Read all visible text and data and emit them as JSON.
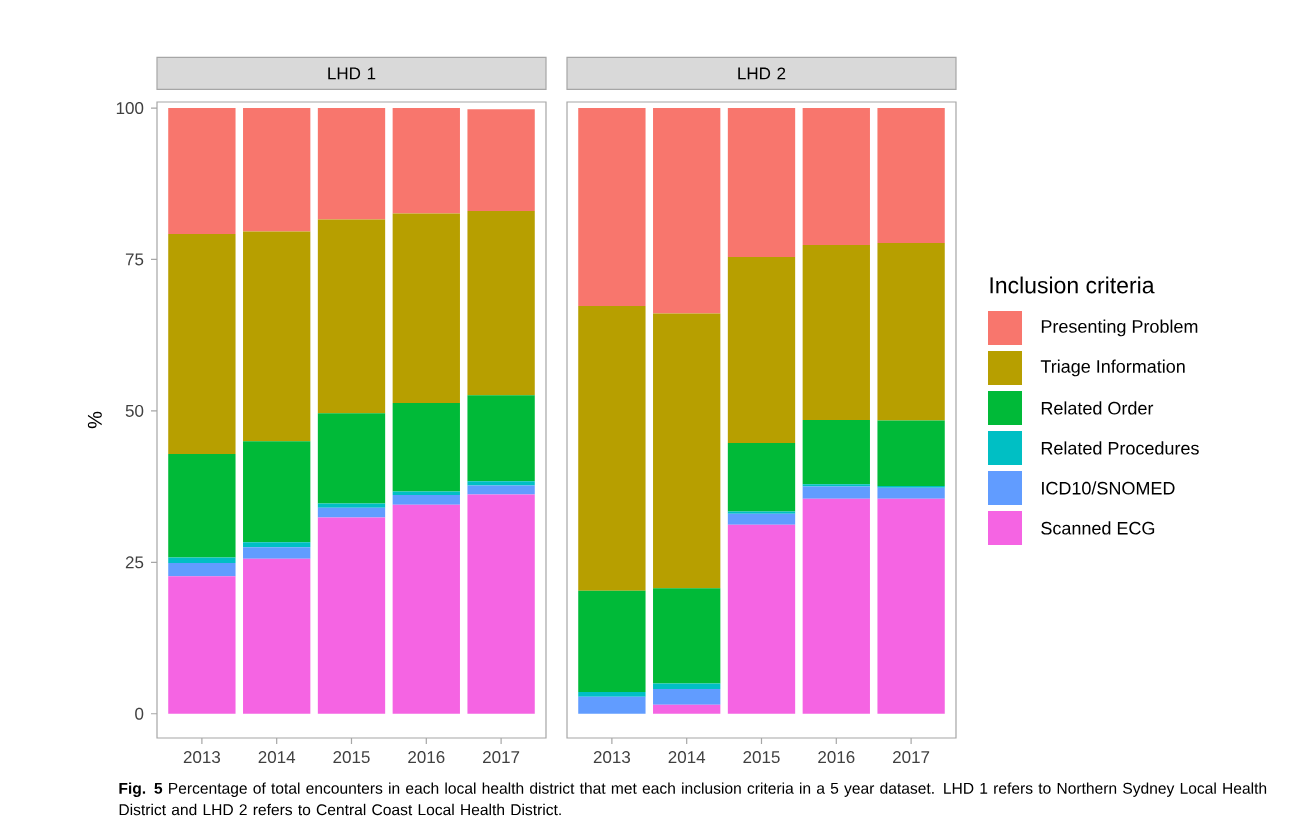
{
  "chart_data": [
    {
      "type": "bar",
      "stacked": true,
      "title": "LHD 1",
      "ylabel": "%",
      "legend": "right",
      "legend_title": "Inclusion criteria",
      "categories": [
        "2013",
        "2014",
        "2015",
        "2016",
        "2017"
      ],
      "series": [
        {
          "name": "Scanned ECG",
          "color": "#f564e3",
          "values": [
            22.7,
            25.6,
            32.4,
            34.5,
            36.2
          ]
        },
        {
          "name": "ICD10/SNOMED",
          "color": "#619cff",
          "values": [
            2.2,
            1.9,
            1.6,
            1.6,
            1.5
          ]
        },
        {
          "name": "Related Procedures",
          "color": "#00bfc4",
          "values": [
            0.9,
            0.8,
            0.7,
            0.6,
            0.7
          ]
        },
        {
          "name": "Related Order",
          "color": "#00ba38",
          "values": [
            17.1,
            16.7,
            14.9,
            14.6,
            14.2
          ]
        },
        {
          "name": "Triage Information",
          "color": "#b79f00",
          "values": [
            36.3,
            34.6,
            32.0,
            31.3,
            30.4
          ]
        },
        {
          "name": "Presenting Problem",
          "color": "#f8766d",
          "values": [
            20.8,
            20.4,
            18.4,
            17.4,
            16.8
          ]
        }
      ],
      "ylim": [
        -4,
        101
      ],
      "yticks": [
        0,
        25,
        50,
        75,
        100
      ],
      "annotations": [
        "**Fig. 5** Percentage of total encounters in each local health district that met each inclusion criteria in a 5 year dataset. LHD 1 refers to Northern Sydney Local Health District and LHD 2 refers to Central Coast Local Health District."
      ]
    },
    {
      "type": "bar",
      "stacked": true,
      "title": "LHD 2",
      "tick_labels": "x",
      "categories": [
        "2013",
        "2014",
        "2015",
        "2016",
        "2017"
      ],
      "series": [
        {
          "color": "#f564e3",
          "values": [
            0,
            1.5,
            31.2,
            35.5,
            35.5
          ]
        },
        {
          "color": "#619cff",
          "values": [
            2.8,
            2.6,
            1.8,
            2.0,
            1.8
          ]
        },
        {
          "color": "#00bfc4",
          "values": [
            0.8,
            0.9,
            0.4,
            0.4,
            0.3
          ]
        },
        {
          "color": "#00ba38",
          "values": [
            16.7,
            15.7,
            11.3,
            10.6,
            10.8
          ]
        },
        {
          "color": "#b79f00",
          "values": [
            47.0,
            45.4,
            30.7,
            28.9,
            29.3
          ]
        },
        {
          "color": "#f8766d",
          "values": [
            32.7,
            33.9,
            24.6,
            22.6,
            22.3
          ]
        }
      ],
      "ylim": [
        -4,
        101
      ],
      "yticks": [
        0,
        25,
        50,
        75,
        100
      ]
    }
  ]
}
